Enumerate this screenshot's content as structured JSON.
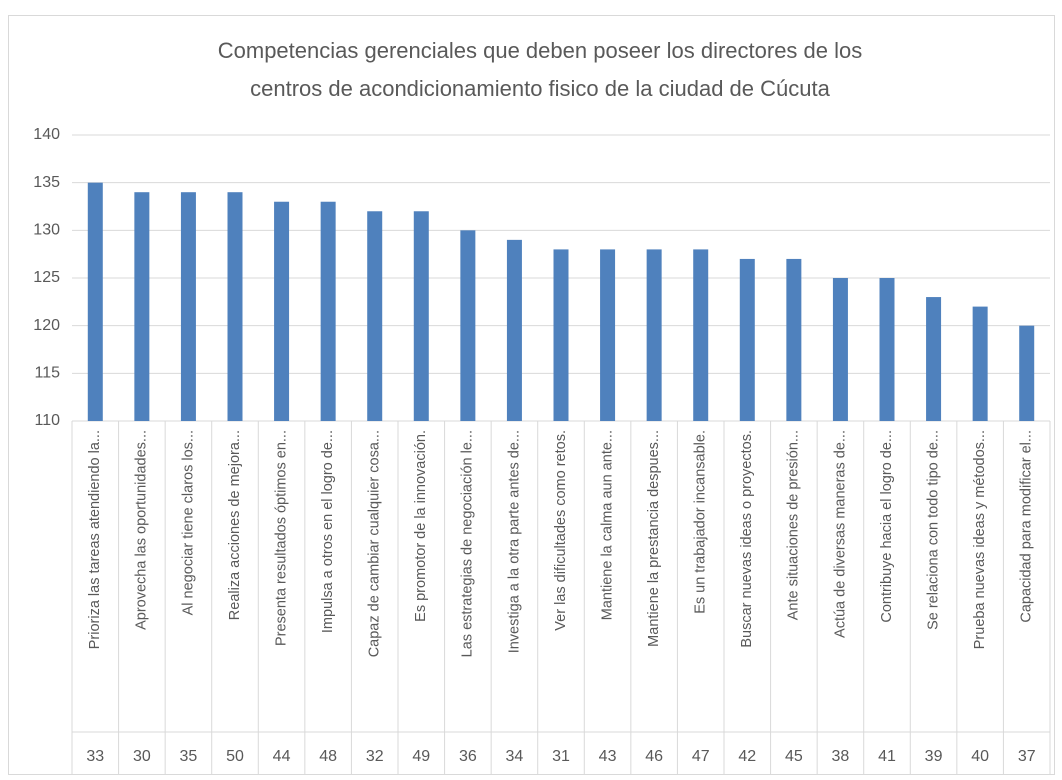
{
  "chart_data": {
    "type": "bar",
    "title_lines": [
      "Competencias gerenciales que deben poseer los directores de los",
      "centros de acondicionamiento fisico de la ciudad de Cúcuta"
    ],
    "categories": [
      "Prioriza las tareas atendiendo la...",
      "Aprovecha las oportunidades...",
      "Al negociar tiene claros los...",
      "Realiza acciones de mejora...",
      "Presenta resultados óptimos en...",
      "Impulsa a otros en el logro de...",
      "Capaz de cambiar cualquier cosa...",
      "Es promotor de la innovación.",
      "Las estrategias de negociación le...",
      "Investiga a la otra parte antes de...",
      "Ver las dificultades como retos.",
      "Mantiene la calma aun ante...",
      "Mantiene la prestancia despues...",
      "Es un trabajador incansable.",
      "Buscar nuevas ideas o proyectos.",
      "Ante situaciones de presión...",
      "Actúa de diversas maneras de...",
      "Contribuye hacia el logro de...",
      "Se relaciona con todo tipo de...",
      "Prueba nuevas ideas y métodos...",
      "Capacidad para modificar el..."
    ],
    "category_codes": [
      "33",
      "30",
      "35",
      "50",
      "44",
      "48",
      "32",
      "49",
      "36",
      "34",
      "31",
      "43",
      "46",
      "47",
      "42",
      "45",
      "38",
      "41",
      "39",
      "40",
      "37"
    ],
    "values": [
      135,
      134,
      134,
      134,
      133,
      133,
      132,
      132,
      130,
      129,
      128,
      128,
      128,
      128,
      127,
      127,
      125,
      125,
      123,
      122,
      120
    ],
    "color": "#4f81bd",
    "ylim": [
      110,
      140
    ],
    "yticks": [
      110,
      115,
      120,
      125,
      130,
      135,
      140
    ],
    "grid": true
  }
}
